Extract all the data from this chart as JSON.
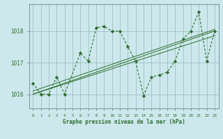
{
  "title": "Graphe pression niveau de la mer (hPa)",
  "bg_color": "#cde8ec",
  "grid_color": "#9bbfc4",
  "line_color": "#2d6e2d",
  "xlim": [
    -0.5,
    23.5
  ],
  "ylim": [
    1015.55,
    1018.85
  ],
  "yticks": [
    1016,
    1017,
    1018
  ],
  "xticks": [
    0,
    1,
    2,
    3,
    4,
    5,
    6,
    7,
    8,
    9,
    10,
    11,
    12,
    13,
    14,
    15,
    16,
    17,
    18,
    19,
    20,
    21,
    22,
    23
  ],
  "main_x": [
    0,
    1,
    2,
    3,
    4,
    6,
    7,
    8,
    9,
    10,
    11,
    12,
    13,
    14,
    15,
    16,
    17,
    18,
    19,
    20,
    21,
    22,
    23
  ],
  "main_y": [
    1016.35,
    1016.0,
    1016.0,
    1016.55,
    1016.0,
    1017.3,
    1017.05,
    1018.1,
    1018.15,
    1018.0,
    1018.0,
    1017.5,
    1017.05,
    1015.95,
    1016.55,
    1016.6,
    1016.7,
    1017.05,
    1017.75,
    1018.0,
    1018.6,
    1017.05,
    1018.0
  ],
  "trend1_x": [
    0,
    23
  ],
  "trend1_y": [
    1016.0,
    1017.85
  ],
  "trend2_x": [
    0,
    23
  ],
  "trend2_y": [
    1016.0,
    1018.0
  ],
  "trend3_x": [
    0,
    23
  ],
  "trend3_y": [
    1016.1,
    1018.05
  ]
}
